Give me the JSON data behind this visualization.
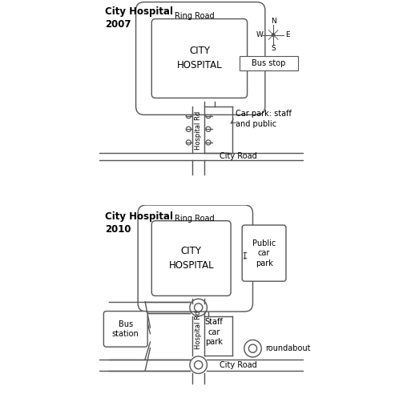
{
  "bg_color": "#ffffff",
  "line_color": "#555555",
  "title1": "City Hospital\n2007",
  "title2": "City Hospital\n2010",
  "label_ring_road": "Ring Road",
  "label_city_road": "City Road",
  "label_hospital_rd": "Hospital Rd",
  "label_city_hospital": "CITY\nHOSPITAL",
  "label_car_park_2007": "Car park: staff\nand public",
  "label_public_car_park": "Public\ncar\npark",
  "label_staff_car_park": "Staff\ncar\npark",
  "label_bus_station": "Bus\nstation",
  "label_bus_stop": "Bus stop",
  "label_roundabout": "roundabout",
  "font_size_title": 8.5,
  "font_size_label": 7,
  "font_size_small": 6
}
